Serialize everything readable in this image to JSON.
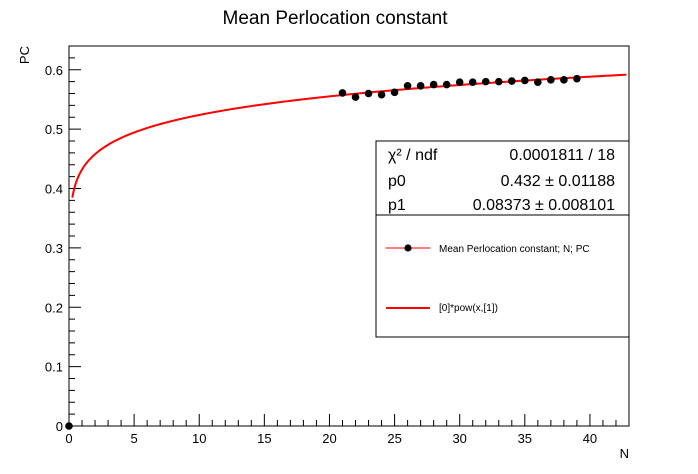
{
  "chart_data": {
    "type": "scatter",
    "title": "Mean Perlocation constant",
    "xlabel": "N",
    "ylabel": "PC",
    "xlim": [
      0,
      43
    ],
    "ylim": [
      0,
      0.64
    ],
    "x_ticks": [
      0,
      5,
      10,
      15,
      20,
      25,
      30,
      35,
      40
    ],
    "y_ticks": [
      0,
      0.1,
      0.2,
      0.3,
      0.4,
      0.5,
      0.6
    ],
    "x_tick_labels": [
      "0",
      "5",
      "10",
      "15",
      "20",
      "25",
      "30",
      "35",
      "40"
    ],
    "y_tick_labels": [
      "0",
      "0.1",
      "0.2",
      "0.3",
      "0.4",
      "0.5",
      "0.6"
    ],
    "grid": false,
    "series": [
      {
        "name": "Mean Perlocation constant; N; PC",
        "kind": "points",
        "color": "#000000",
        "x": [
          0,
          21,
          22,
          23,
          24,
          25,
          26,
          27,
          28,
          29,
          30,
          31,
          32,
          33,
          34,
          35,
          36,
          37,
          38,
          39
        ],
        "y": [
          0.0,
          0.561,
          0.554,
          0.56,
          0.558,
          0.562,
          0.573,
          0.573,
          0.575,
          0.575,
          0.579,
          0.579,
          0.58,
          0.58,
          0.581,
          0.582,
          0.579,
          0.583,
          0.583,
          0.585
        ]
      },
      {
        "name": "[0]*pow(x,[1])",
        "kind": "fit",
        "color": "#ff0000",
        "function": "power",
        "p0": 0.432,
        "p1": 0.08373,
        "x_range": [
          0.25,
          42.8
        ]
      }
    ],
    "stats": {
      "rows": [
        {
          "label": "χ² / ndf",
          "value": "0.0001811 / 18"
        },
        {
          "label": "p0",
          "value": "0.432 ± 0.01188"
        },
        {
          "label": "p1",
          "value": "0.08373 ± 0.008101"
        }
      ]
    },
    "legend": {
      "placement": "right",
      "entries": [
        {
          "label": "Mean Perlocation constant; N; PC"
        },
        {
          "label": "[0]*pow(x,[1])"
        }
      ]
    }
  }
}
